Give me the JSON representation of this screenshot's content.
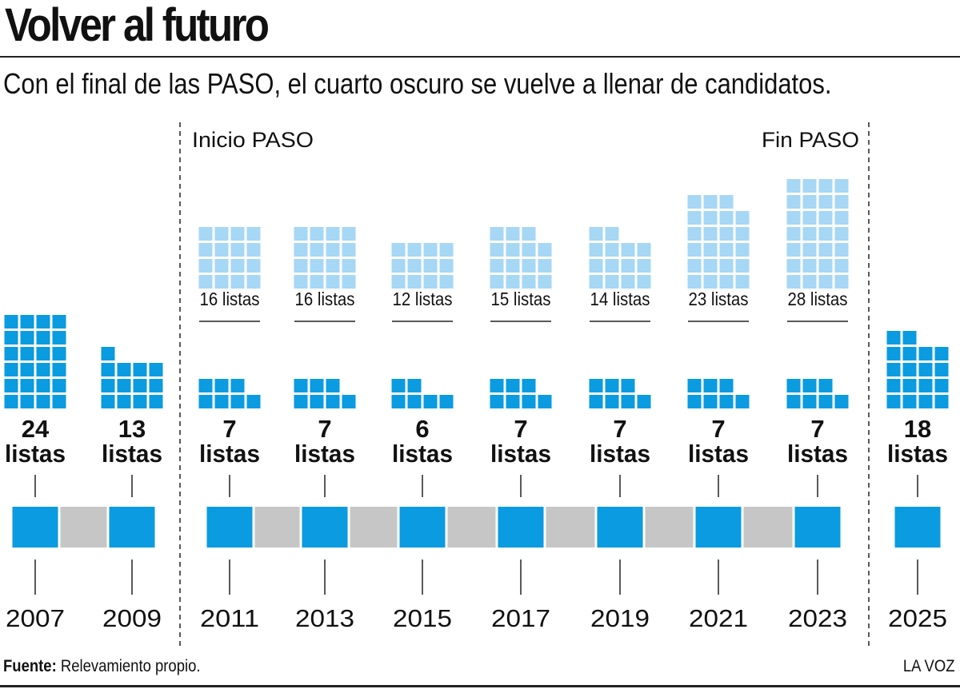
{
  "title": "Volver al futuro",
  "subtitle": "Con el final de las PASO, el cuarto oscuro se vuelve a llenar de candidatos.",
  "footer": {
    "source_label": "Fuente:",
    "source_text": "Relevamiento propio.",
    "brand": "LA VOZ"
  },
  "colors": {
    "primary_blue": "#0a9be0",
    "light_blue": "#a6d7f5",
    "gray": "#c6c6c6",
    "text": "#111111"
  },
  "chart_data": {
    "type": "pictogram",
    "unit_suffix": "listas",
    "markers": [
      {
        "label": "Inicio PASO",
        "between": [
          "2009",
          "2011"
        ]
      },
      {
        "label": "Fin PASO",
        "between": [
          "2023",
          "2025"
        ]
      }
    ],
    "years": [
      {
        "year": "2007",
        "general": 24,
        "paso": null
      },
      {
        "year": "2009",
        "general": 13,
        "paso": null
      },
      {
        "year": "2011",
        "general": 7,
        "paso": 16
      },
      {
        "year": "2013",
        "general": 7,
        "paso": 16
      },
      {
        "year": "2015",
        "general": 6,
        "paso": 12
      },
      {
        "year": "2017",
        "general": 7,
        "paso": 15
      },
      {
        "year": "2019",
        "general": 7,
        "paso": 14
      },
      {
        "year": "2021",
        "general": 7,
        "paso": 23
      },
      {
        "year": "2023",
        "general": 7,
        "paso": 28
      },
      {
        "year": "2025",
        "general": 18,
        "paso": null
      }
    ],
    "timeline_gaps": [
      "2009-2011",
      "2011-2013",
      "2013-2015",
      "2015-2017",
      "2017-2019",
      "2019-2021",
      "2021-2023"
    ]
  }
}
